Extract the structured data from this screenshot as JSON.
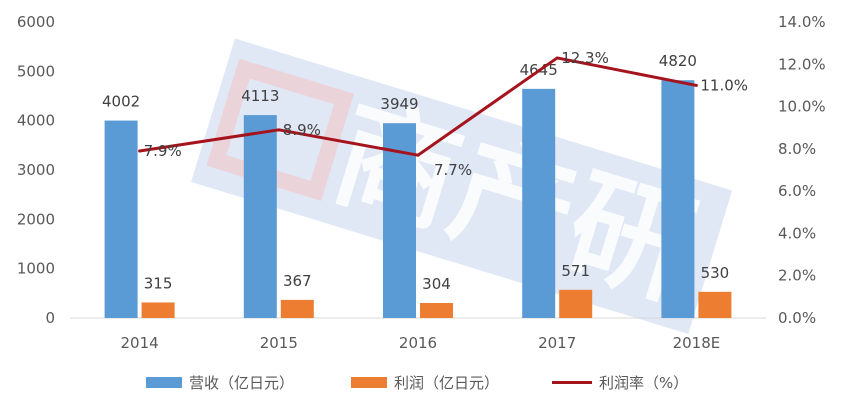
{
  "chart_data": {
    "type": "bar",
    "categories": [
      "2014",
      "2015",
      "2016",
      "2017",
      "2018E"
    ],
    "series": [
      {
        "name": "营收（亿日元",
        "type": "bar",
        "axis": "left",
        "color": "#5B9BD5",
        "values": [
          4002,
          4113,
          3949,
          4645,
          4820
        ]
      },
      {
        "name": "利润（亿日元",
        "type": "bar",
        "axis": "left",
        "color": "#ED7D31",
        "values": [
          315,
          367,
          304,
          571,
          530
        ]
      },
      {
        "name": "利润率（%",
        "type": "line",
        "axis": "right",
        "color": "#A5141C",
        "values": [
          7.9,
          8.9,
          7.7,
          12.3,
          11.0
        ]
      }
    ],
    "left_axis": {
      "min": 0,
      "max": 6000,
      "step": 1000
    },
    "right_axis": {
      "min": 0,
      "max": 14,
      "step": 2,
      "format": "0.0%"
    },
    "labels": {
      "revenue": [
        "4002",
        "4113",
        "3949",
        "4645",
        "4820"
      ],
      "profit": [
        "315",
        "367",
        "304",
        "571",
        "530"
      ],
      "margin": [
        "7.9%",
        "8.9%",
        "7.7%",
        "12.3%",
        "11.0%"
      ]
    },
    "grid": false,
    "legend_position": "bottom",
    "watermark": "商产研"
  },
  "legend": {
    "revenue": "营收（亿日元）",
    "profit": "利润（亿日元）",
    "margin": "利润率（%）"
  }
}
